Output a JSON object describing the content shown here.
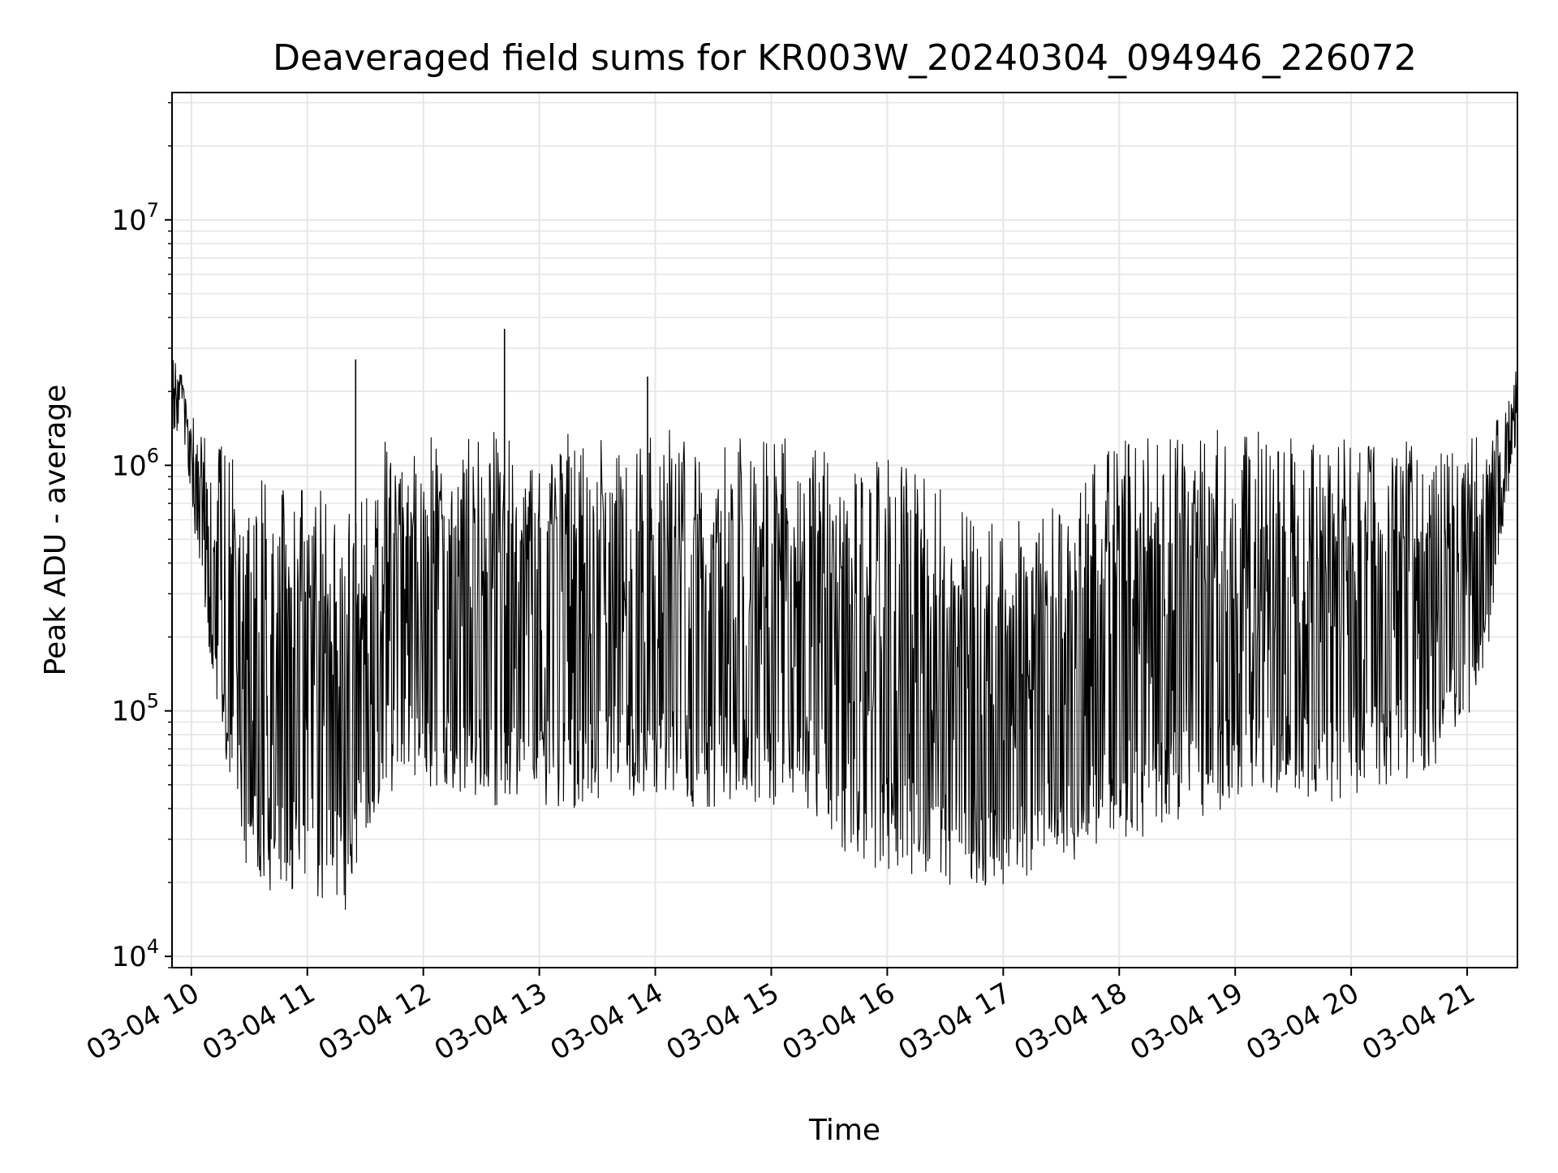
{
  "chart_data": {
    "type": "line",
    "title": "Deaveraged field sums for KR003W_20240304_094946_226072",
    "xlabel": "Time",
    "ylabel": "Peak ADU - average",
    "yscale": "log",
    "ylim": [
      9000,
      33000000
    ],
    "xlim": [
      "2024-03-04 09:50",
      "2024-03-04 21:26"
    ],
    "grid": true,
    "grid_color": "#e6e6e6",
    "line_color": "#000000",
    "x_ticks": [
      {
        "t": "2024-03-04 10:00",
        "label": "03-04 10"
      },
      {
        "t": "2024-03-04 11:00",
        "label": "03-04 11"
      },
      {
        "t": "2024-03-04 12:00",
        "label": "03-04 12"
      },
      {
        "t": "2024-03-04 13:00",
        "label": "03-04 13"
      },
      {
        "t": "2024-03-04 14:00",
        "label": "03-04 14"
      },
      {
        "t": "2024-03-04 15:00",
        "label": "03-04 15"
      },
      {
        "t": "2024-03-04 16:00",
        "label": "03-04 16"
      },
      {
        "t": "2024-03-04 17:00",
        "label": "03-04 17"
      },
      {
        "t": "2024-03-04 18:00",
        "label": "03-04 18"
      },
      {
        "t": "2024-03-04 19:00",
        "label": "03-04 19"
      },
      {
        "t": "2024-03-04 20:00",
        "label": "03-04 20"
      },
      {
        "t": "2024-03-04 21:00",
        "label": "03-04 21"
      }
    ],
    "y_ticks": [
      {
        "value": 10000,
        "base": "10",
        "exp": "4"
      },
      {
        "value": 100000,
        "base": "10",
        "exp": "5"
      },
      {
        "value": 1000000,
        "base": "10",
        "exp": "6"
      },
      {
        "value": 10000000,
        "base": "10",
        "exp": "7"
      }
    ],
    "series": [
      {
        "x": [
          "2024-03-04 09:50",
          "2024-03-04 09:55",
          "2024-03-04 10:02",
          "2024-03-04 10:10",
          "2024-03-04 10:20",
          "2024-03-04 10:30",
          "2024-03-04 10:40",
          "2024-03-04 10:50",
          "2024-03-04 11:00",
          "2024-03-04 11:10",
          "2024-03-04 11:20",
          "2024-03-04 11:30",
          "2024-03-04 11:40",
          "2024-03-04 11:50",
          "2024-03-04 12:00",
          "2024-03-04 12:20",
          "2024-03-04 12:40",
          "2024-03-04 13:00",
          "2024-03-04 13:20",
          "2024-03-04 13:40",
          "2024-03-04 14:00",
          "2024-03-04 14:20",
          "2024-03-04 14:40",
          "2024-03-04 15:00",
          "2024-03-04 15:20",
          "2024-03-04 15:40",
          "2024-03-04 16:00",
          "2024-03-04 16:20",
          "2024-03-04 16:40",
          "2024-03-04 17:00",
          "2024-03-04 17:20",
          "2024-03-04 17:40",
          "2024-03-04 18:00",
          "2024-03-04 18:20",
          "2024-03-04 18:40",
          "2024-03-04 19:00",
          "2024-03-04 19:20",
          "2024-03-04 19:40",
          "2024-03-04 20:00",
          "2024-03-04 20:20",
          "2024-03-04 20:40",
          "2024-03-04 21:00",
          "2024-03-04 21:10",
          "2024-03-04 21:20",
          "2024-03-04 21:26"
        ],
        "y_max": [
          2800000,
          2400000,
          1500000,
          1400000,
          1100000,
          950000,
          850000,
          800000,
          850000,
          800000,
          700000,
          750000,
          1300000,
          1400000,
          1400000,
          1400000,
          1400000,
          1400000,
          1400000,
          1400000,
          1400000,
          1400000,
          1300000,
          1300000,
          1300000,
          1200000,
          1100000,
          900000,
          700000,
          600000,
          700000,
          900000,
          1300000,
          1400000,
          1400000,
          1400000,
          1400000,
          1350000,
          1300000,
          1300000,
          1250000,
          1300000,
          1500000,
          1700000,
          2800000
        ],
        "y_min": [
          1400000,
          1300000,
          500000,
          160000,
          50000,
          19000,
          18000,
          17000,
          18000,
          17000,
          14000,
          30000,
          45000,
          50000,
          45000,
          45000,
          40000,
          40000,
          40000,
          45000,
          45000,
          40000,
          40000,
          40000,
          40000,
          25000,
          22000,
          20000,
          19000,
          19000,
          22000,
          25000,
          30000,
          30000,
          35000,
          40000,
          40000,
          40000,
          45000,
          50000,
          50000,
          90000,
          150000,
          700000,
          1100000
        ],
        "spikes": [
          {
            "t": "2024-03-04 11:25",
            "value": 2700000
          },
          {
            "t": "2024-03-04 12:42",
            "value": 3600000
          },
          {
            "t": "2024-03-04 13:56",
            "value": 2300000
          }
        ]
      }
    ]
  }
}
